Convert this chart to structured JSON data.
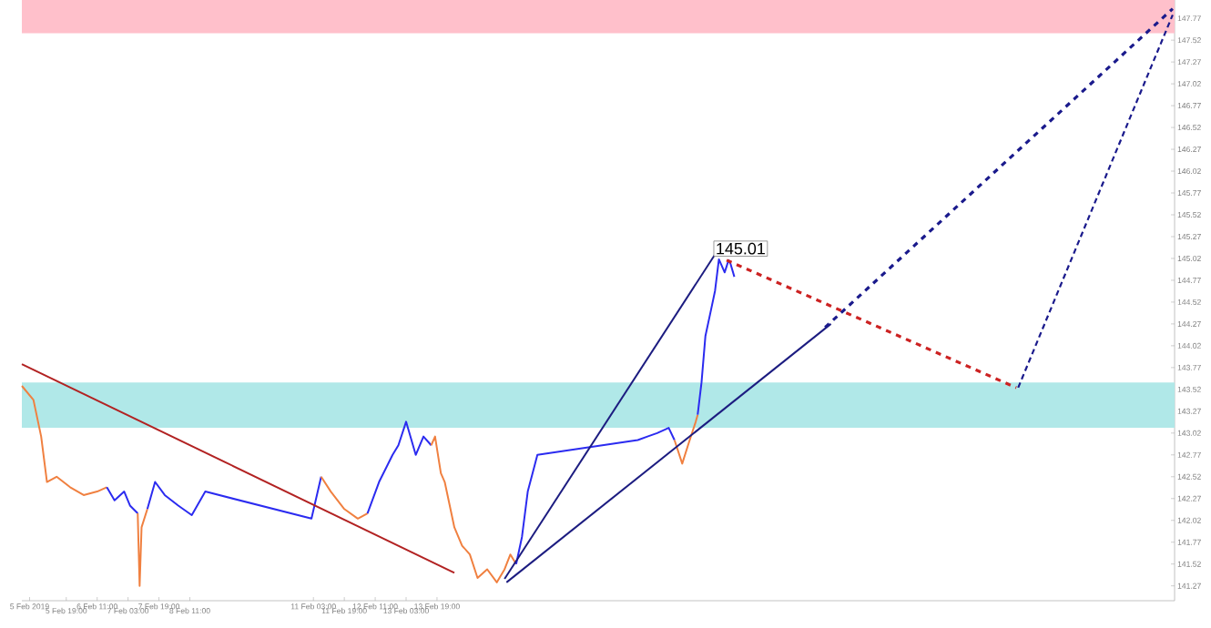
{
  "chart_data": {
    "type": "line",
    "xlim": [
      "2019-02-04T20:00",
      "2019-03-01T17:00"
    ],
    "ylim": [
      141.1,
      147.98
    ],
    "xticks": [
      {
        "value": "2019-02-05T00:00",
        "label": "5 Feb 2019"
      },
      {
        "value": "2019-02-05T19:00",
        "label": "5 Feb 19:00"
      },
      {
        "value": "2019-02-06T11:00",
        "label": "6 Feb 11:00"
      },
      {
        "value": "2019-02-07T03:00",
        "label": "7 Feb 03:00"
      },
      {
        "value": "2019-02-07T19:00",
        "label": "7 Feb 19:00"
      },
      {
        "value": "2019-02-08T11:00",
        "label": "8 Feb 11:00"
      },
      {
        "value": "2019-02-11T03:00",
        "label": "11 Feb 03:00"
      },
      {
        "value": "2019-02-11T19:00",
        "label": "11 Feb 19:00"
      },
      {
        "value": "2019-02-12T11:00",
        "label": "12 Feb 11:00"
      },
      {
        "value": "2019-02-13T03:00",
        "label": "13 Feb 03:00"
      },
      {
        "value": "2019-02-13T19:00",
        "label": "13 Feb 19:00"
      }
    ],
    "yticks": [
      147.77,
      147.52,
      147.27,
      147.02,
      146.77,
      146.52,
      146.27,
      146.02,
      145.77,
      145.52,
      145.27,
      145.02,
      144.77,
      144.52,
      144.27,
      144.02,
      143.77,
      143.52,
      143.27,
      143.02,
      142.77,
      142.52,
      142.27,
      142.02,
      141.77,
      141.52,
      141.27
    ],
    "grid": false,
    "bands": [
      {
        "axis": "y",
        "from": 143.08,
        "to": 143.6,
        "color": "#b0e8e8"
      },
      {
        "axis": "y",
        "from": 147.6,
        "to": 147.98,
        "color": "#ffc0cb"
      }
    ],
    "annotations": [
      {
        "text": "145.01",
        "x": "2019-02-19T21:00",
        "y": 145.01
      }
    ],
    "series": [
      {
        "color": "#f08040",
        "line_style": "solid",
        "x": [
          "2019-02-04T20:00",
          "2019-02-05T02:00",
          "2019-02-05T06:00",
          "2019-02-05T09:00",
          "2019-02-05T14:00",
          "2019-02-05T21:00",
          "2019-02-06T04:00",
          "2019-02-06T11:00",
          "2019-02-06T16:00"
        ],
        "values": [
          143.56,
          143.4,
          142.98,
          142.46,
          142.52,
          142.4,
          142.31,
          142.35,
          142.4
        ]
      },
      {
        "color": "#2b2bf0",
        "line_style": "solid",
        "x": [
          "2019-02-06T16:00",
          "2019-02-06T20:00",
          "2019-02-07T01:00",
          "2019-02-07T04:00",
          "2019-02-07T08:00"
        ],
        "values": [
          142.4,
          142.25,
          142.35,
          142.19,
          142.1
        ]
      },
      {
        "color": "#f08040",
        "line_style": "solid",
        "x": [
          "2019-02-07T08:00",
          "2019-02-07T09:00",
          "2019-02-07T10:00",
          "2019-02-07T13:00"
        ],
        "values": [
          142.1,
          141.27,
          141.94,
          142.15
        ]
      },
      {
        "color": "#2b2bf0",
        "line_style": "solid",
        "x": [
          "2019-02-07T13:00",
          "2019-02-07T17:00",
          "2019-02-07T22:00",
          "2019-02-08T05:00",
          "2019-02-08T12:00",
          "2019-02-08T19:00",
          "2019-02-11T02:00",
          "2019-02-11T07:00"
        ],
        "values": [
          142.15,
          142.46,
          142.31,
          142.19,
          142.08,
          142.35,
          142.04,
          142.52
        ]
      },
      {
        "color": "#f08040",
        "line_style": "solid",
        "x": [
          "2019-02-11T07:00",
          "2019-02-11T12:00",
          "2019-02-11T19:00",
          "2019-02-12T02:00",
          "2019-02-12T07:00"
        ],
        "values": [
          142.52,
          142.35,
          142.15,
          142.04,
          142.1
        ]
      },
      {
        "color": "#2b2bf0",
        "line_style": "solid",
        "x": [
          "2019-02-12T07:00",
          "2019-02-12T13:00",
          "2019-02-12T20:00",
          "2019-02-12T23:00",
          "2019-02-13T03:00",
          "2019-02-13T08:00",
          "2019-02-13T12:00",
          "2019-02-13T16:00"
        ],
        "values": [
          142.1,
          142.46,
          142.77,
          142.88,
          143.15,
          142.77,
          142.98,
          142.88
        ]
      },
      {
        "color": "#f08040",
        "line_style": "solid",
        "x": [
          "2019-02-13T16:00",
          "2019-02-13T18:00",
          "2019-02-13T21:00",
          "2019-02-13T23:00",
          "2019-02-14T04:00",
          "2019-02-14T08:00",
          "2019-02-14T12:00",
          "2019-02-14T16:00",
          "2019-02-14T21:00",
          "2019-02-15T02:00",
          "2019-02-15T06:00",
          "2019-02-15T09:00",
          "2019-02-15T12:00"
        ],
        "values": [
          142.88,
          142.98,
          142.56,
          142.46,
          141.94,
          141.73,
          141.63,
          141.36,
          141.46,
          141.31,
          141.46,
          141.63,
          141.52
        ]
      },
      {
        "color": "#2b2bf0",
        "line_style": "solid",
        "x": [
          "2019-02-15T12:00",
          "2019-02-15T15:00",
          "2019-02-15T18:00",
          "2019-02-15T23:00",
          "2019-02-18T03:00",
          "2019-02-18T08:00",
          "2019-02-18T13:00",
          "2019-02-18T19:00",
          "2019-02-18T22:00"
        ],
        "values": [
          141.52,
          141.83,
          142.35,
          142.77,
          142.94,
          142.98,
          143.02,
          143.08,
          142.94
        ]
      },
      {
        "color": "#f08040",
        "line_style": "solid",
        "x": [
          "2019-02-18T22:00",
          "2019-02-19T02:00",
          "2019-02-19T05:00",
          "2019-02-19T09:00",
          "2019-02-19T10:00"
        ],
        "values": [
          142.94,
          142.67,
          142.88,
          143.15,
          143.23
        ]
      },
      {
        "color": "#2b2bf0",
        "line_style": "solid",
        "x": [
          "2019-02-19T10:00",
          "2019-02-19T12:00",
          "2019-02-19T14:00",
          "2019-02-19T17:00",
          "2019-02-19T19:00",
          "2019-02-19T21:00",
          "2019-02-20T00:00",
          "2019-02-20T02:00",
          "2019-02-20T03:00",
          "2019-02-20T05:00"
        ],
        "values": [
          143.23,
          143.6,
          144.13,
          144.44,
          144.65,
          145.01,
          144.86,
          145.0,
          144.96,
          144.81
        ]
      },
      {
        "color": "#b22222",
        "line_style": "solid",
        "x": [
          "2019-02-04T20:00",
          "2019-02-14T04:00"
        ],
        "values": [
          143.81,
          141.42
        ]
      },
      {
        "color": "#1c1c80",
        "line_style": "solid",
        "x": [
          "2019-02-15T07:00",
          "2019-02-22T07:00"
        ],
        "values": [
          141.31,
          144.27
        ]
      },
      {
        "color": "#1c1c80",
        "line_style": "solid",
        "x": [
          "2019-02-15T06:00",
          "2019-02-19T20:00"
        ],
        "values": [
          141.35,
          145.1
        ]
      },
      {
        "color": "#cc2222",
        "line_style": "dashed",
        "x": [
          "2019-02-20T01:00",
          "2019-02-26T07:00"
        ],
        "values": [
          145.0,
          143.54
        ]
      },
      {
        "color": "#1a1a8c",
        "line_style": "dashed",
        "x": [
          "2019-02-22T04:00",
          "2019-03-01T16:00"
        ],
        "values": [
          144.23,
          147.88
        ]
      },
      {
        "color": "#1a1a8c",
        "line_style": "dotted",
        "x": [
          "2019-02-26T08:00",
          "2019-03-01T16:00"
        ],
        "values": [
          143.54,
          147.81
        ]
      }
    ]
  }
}
